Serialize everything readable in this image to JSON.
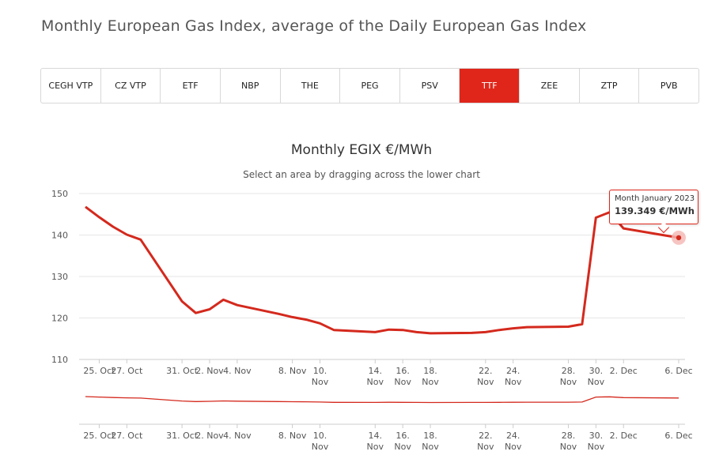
{
  "page": {
    "title": "Monthly European Gas Index, average of the Daily European Gas Index"
  },
  "tabs": [
    {
      "label": "CEGH VTP",
      "active": false
    },
    {
      "label": "CZ VTP",
      "active": false
    },
    {
      "label": "ETF",
      "active": false
    },
    {
      "label": "NBP",
      "active": false
    },
    {
      "label": "THE",
      "active": false
    },
    {
      "label": "PEG",
      "active": false
    },
    {
      "label": "PSV",
      "active": false
    },
    {
      "label": "TTF",
      "active": true
    },
    {
      "label": "ZEE",
      "active": false
    },
    {
      "label": "ZTP",
      "active": false
    },
    {
      "label": "PVB",
      "active": false
    }
  ],
  "colors": {
    "accent": "#e0261b",
    "series": "#d4291d",
    "grid": "#e6e6e6",
    "marker_halo": "#f4b7b3"
  },
  "tooltip": {
    "title": "Month January 2023",
    "value": "139.349 €/MWh"
  },
  "chart_data": {
    "type": "line",
    "title": "Monthly EGIX €/MWh",
    "subtitle": "Select an area by dragging across the lower chart",
    "xlabel": "",
    "ylabel": "",
    "ylim": [
      110,
      150
    ],
    "yticks": [
      110,
      120,
      130,
      140,
      150
    ],
    "grid": true,
    "x_tick_labels": [
      "25. Oct",
      "27. Oct",
      "31. Oct",
      "2. Nov",
      "4. Nov",
      "8. Nov",
      "10. Nov",
      "14. Nov",
      "16. Nov",
      "18. Nov",
      "22. Nov",
      "24. Nov",
      "28. Nov",
      "30. Nov",
      "2. Dec",
      "6. Dec"
    ],
    "series": [
      {
        "name": "",
        "x": [
          "24. Oct",
          "25. Oct",
          "26. Oct",
          "27. Oct",
          "28. Oct",
          "31. Oct",
          "1. Nov",
          "2. Nov",
          "3. Nov",
          "4. Nov",
          "7. Nov",
          "8. Nov",
          "9. Nov",
          "10. Nov",
          "11. Nov",
          "14. Nov",
          "15. Nov",
          "16. Nov",
          "17. Nov",
          "18. Nov",
          "21. Nov",
          "22. Nov",
          "23. Nov",
          "24. Nov",
          "25. Nov",
          "28. Nov",
          "29. Nov",
          "30. Nov",
          "1. Dec",
          "2. Dec",
          "5. Dec",
          "6. Dec"
        ],
        "values": [
          146.8,
          144.3,
          142.0,
          140.1,
          138.9,
          124.0,
          121.2,
          122.1,
          124.4,
          123.1,
          121.0,
          120.2,
          119.6,
          118.7,
          117.1,
          116.6,
          117.2,
          117.1,
          116.6,
          116.3,
          116.4,
          116.6,
          117.1,
          117.5,
          117.8,
          117.9,
          118.5,
          144.2,
          145.5,
          141.6,
          139.9,
          139.349
        ]
      }
    ]
  }
}
